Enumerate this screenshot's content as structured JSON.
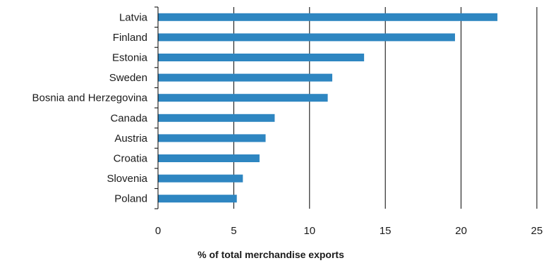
{
  "chart_data": {
    "type": "bar",
    "orientation": "horizontal",
    "categories": [
      "Latvia",
      "Finland",
      "Estonia",
      "Sweden",
      "Bosnia and Herzegovina",
      "Canada",
      "Austria",
      "Croatia",
      "Slovenia",
      "Poland"
    ],
    "values": [
      22.4,
      19.6,
      13.6,
      11.5,
      11.2,
      7.7,
      7.1,
      6.7,
      5.6,
      5.2
    ],
    "title": "",
    "xlabel": "% of total merchandise exports",
    "ylabel": "",
    "xlim": [
      0,
      25
    ],
    "xticks": [
      "0",
      "5",
      "10",
      "15",
      "20",
      "25"
    ],
    "grid": "vertical",
    "legend": "none",
    "bar_color": "#2e86c1"
  }
}
